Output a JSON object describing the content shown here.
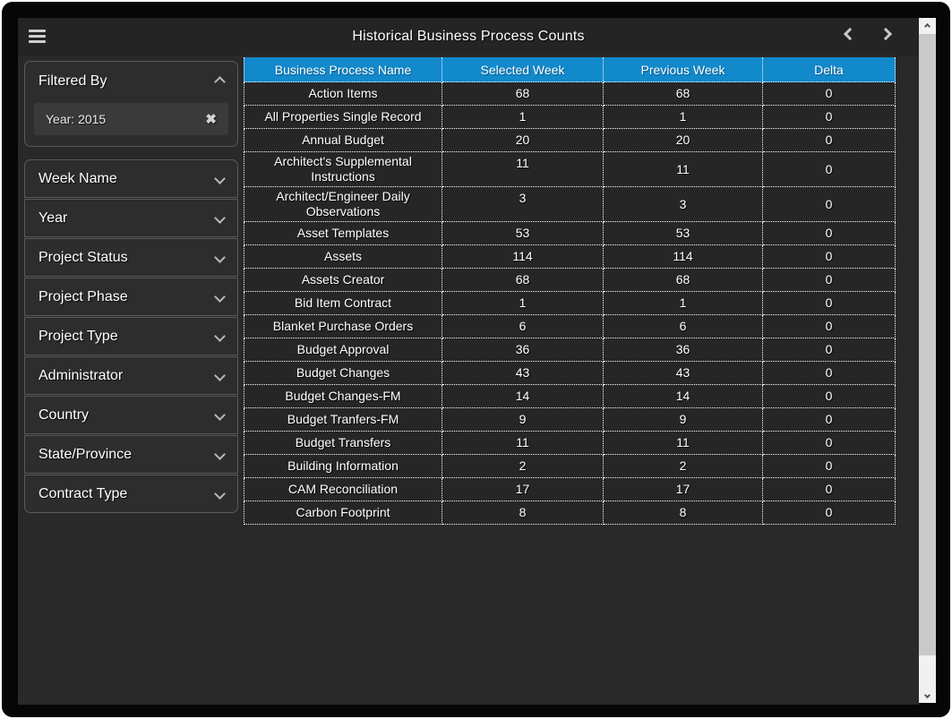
{
  "toolbar": {
    "title": "Historical Business Process Counts",
    "menu_icon": "hamburger-menu",
    "prev_icon": "chevron-left",
    "next_icon": "chevron-right"
  },
  "sidebar": {
    "filtered_by": {
      "title": "Filtered By",
      "collapse_icon": "chevron-up",
      "chip": {
        "label": "Year: 2015",
        "remove_icon": "x-mark"
      }
    },
    "expand_icon": "chevron-down",
    "filters": [
      {
        "label": "Week Name"
      },
      {
        "label": "Year"
      },
      {
        "label": "Project Status"
      },
      {
        "label": "Project Phase"
      },
      {
        "label": "Project Type"
      },
      {
        "label": "Administrator"
      },
      {
        "label": "Country"
      },
      {
        "label": "State/Province"
      },
      {
        "label": "Contract Type"
      }
    ]
  },
  "table": {
    "columns": [
      "Business Process Name",
      "Selected Week",
      "Previous Week",
      "Delta"
    ],
    "rows": [
      [
        "Action Items",
        "68",
        "68",
        "0"
      ],
      [
        "All Properties Single Record",
        "1",
        "1",
        "0"
      ],
      [
        "Annual Budget",
        "20",
        "20",
        "0"
      ],
      [
        "Architect's Supplemental Instructions",
        "11",
        "11",
        "0"
      ],
      [
        "Architect/Engineer Daily Observations",
        "3",
        "3",
        "0"
      ],
      [
        "Asset Templates",
        "53",
        "53",
        "0"
      ],
      [
        "Assets",
        "114",
        "114",
        "0"
      ],
      [
        "Assets Creator",
        "68",
        "68",
        "0"
      ],
      [
        "Bid Item Contract",
        "1",
        "1",
        "0"
      ],
      [
        "Blanket Purchase Orders",
        "6",
        "6",
        "0"
      ],
      [
        "Budget Approval",
        "36",
        "36",
        "0"
      ],
      [
        "Budget Changes",
        "43",
        "43",
        "0"
      ],
      [
        "Budget Changes-FM",
        "14",
        "14",
        "0"
      ],
      [
        "Budget Tranfers-FM",
        "9",
        "9",
        "0"
      ],
      [
        "Budget Transfers",
        "11",
        "11",
        "0"
      ],
      [
        "Building Information",
        "2",
        "2",
        "0"
      ],
      [
        "CAM Reconciliation",
        "17",
        "17",
        "0"
      ],
      [
        "Carbon Footprint",
        "8",
        "8",
        "0"
      ]
    ]
  },
  "colors": {
    "header_blue": "#1189cb",
    "panel_border": "#5a5a5a",
    "app_background": "#292929",
    "cell_background": "#262626"
  }
}
